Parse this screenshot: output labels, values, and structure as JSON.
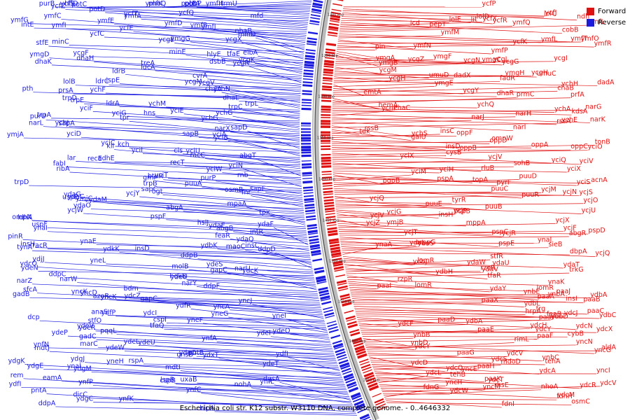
{
  "legend": {
    "forward_label": "Forward",
    "reverse_label": "Reverse",
    "forward_color": "#e01010",
    "reverse_color": "#1a1ae0"
  },
  "caption": "Escherichia coli str. K12 substr. W3110 DNA, complete genome. - 0..4646332",
  "ruler_ticks": [
    "1200 kbp",
    "1250 kbp",
    "1300 kbp",
    "1350 kbp",
    "1400 kbp",
    "1450 kbp",
    "1500 kbp",
    "1550 kbp",
    "1600 kbp",
    "1650 kbp"
  ],
  "reverse_genes": [
    "ymfK",
    "ymfH",
    "trmU",
    "hflD",
    "purB",
    "phoP",
    "phoQ",
    "potA",
    "potB",
    "potC",
    "ycfZ",
    "ycfT",
    "mfd",
    "ycfS",
    "ycfQ",
    "potD",
    "ymfA",
    "ymfG",
    "intE",
    "ymfD",
    "ymfC",
    "ymfJ",
    "ymfE",
    "ymfB",
    "ymfI",
    "ycfC",
    "ycfE",
    "nhaB",
    "minC",
    "minD",
    "ymgG",
    "ycgE",
    "ycgX",
    "stfE",
    "ycgF",
    "elbA",
    "tfaE",
    "dsbB",
    "hlyE",
    "minE",
    "ycgK",
    "ymgD",
    "dhaK",
    "dhaH",
    "treA",
    "ycgR",
    "ldcA",
    "cvrA",
    "ycgM",
    "ldrC",
    "ldrB",
    "lolB",
    "ispE",
    "prsA",
    "pth",
    "ychF",
    "ycgV",
    "dhaL",
    "ychN",
    "chaA",
    "ldrA",
    "ychM",
    "trpL",
    "trpE",
    "trpD",
    "trpC",
    "trpA",
    "yciG",
    "yciF",
    "yciE",
    "ychG",
    "ychG",
    "hns",
    "ychJ",
    "purU",
    "tpr",
    "narL",
    "narX",
    "ymjA",
    "sapA",
    "sapB",
    "sapD",
    "yciD",
    "yciC",
    "yciB",
    "yciA",
    "yciI",
    "kch",
    "cls",
    "yciU",
    "adhE",
    "kil",
    "racC",
    "recE",
    "recT",
    "lar",
    "abgT",
    "fabI",
    "yciW",
    "rnb",
    "yciT",
    "ribA",
    "yciN",
    "btuR",
    "trpD",
    "trpB",
    "purP",
    "sapF",
    "gmr",
    "osmB",
    "puuA",
    "sapC",
    "ogt",
    "fnr",
    "uspE",
    "ycjY",
    "ydaG",
    "ydaC",
    "ydaO",
    "ydaM",
    "ymjC",
    "abgA",
    "mpaA",
    "tpx",
    "ycjW",
    "pspF",
    "ldhA",
    "hslJ",
    "ompN",
    "uspF",
    "ydaE",
    "intR",
    "abgB",
    "ynaI",
    "ydaF",
    "ydaQ",
    "ynaE",
    "feaR",
    "pinR",
    "insH",
    "racR",
    "ydbK",
    "tynA",
    "insD",
    "maoC",
    "insC",
    "ddpB",
    "ddpD",
    "ydkK",
    "yneL",
    "ydeS",
    "ydeN",
    "ydjJ",
    "ydcK",
    "molB",
    "hokB",
    "ydcO",
    "gapC",
    "ydeU",
    "narU",
    "ddpC",
    "ddpF",
    "narZ",
    "bdm",
    "narY",
    "narW",
    "yncD",
    "gadB",
    "sfcA",
    "yncK",
    "gapC",
    "yncK",
    "azoR",
    "yncA",
    "ydcZ",
    "yncJ",
    "ydcI",
    "anaS",
    "ydfR",
    "ydfP",
    "cspI",
    "stfO",
    "ynel",
    "yneG",
    "tfaQ",
    "dcp",
    "yneF",
    "ydeO",
    "ydeR",
    "ydeI",
    "pqqL",
    "ydeV",
    "ydeP",
    "gadC",
    "ynfA",
    "ynfN",
    "ydeL",
    "marC",
    "ydeW",
    "ydeU",
    "ydeO",
    "pntB",
    "mdtJ",
    "rspA",
    "gnsB",
    "ydfI",
    "yneH",
    "ydeT",
    "ydxT",
    "ydgE",
    "ydgJ",
    "ydgK",
    "ydgM",
    "ynaI",
    "mdtI",
    "lspB",
    "cspB",
    "ydfI",
    "uxaB",
    "ynfL",
    "rem",
    "eamA",
    "dgsA",
    "ynfP",
    "nohA",
    "ydgC",
    "ynfK",
    "dicC",
    "ynfC",
    "pntA",
    "ddpA",
    "hipA"
  ],
  "forward_genes": [
    "ycfP",
    "ndh",
    "ycfJ",
    "ycfR",
    "lolC",
    "lolD",
    "lolE",
    "ycfX",
    "cobB",
    "pepT",
    "lit",
    "icd",
    "ymfQ",
    "ymfL",
    "ymfT",
    "ymfL",
    "ymfM",
    "ymfN",
    "ymfR",
    "ymfO",
    "ymfP",
    "ycfK",
    "pin",
    "ycgZ",
    "ymgA",
    "ymgB",
    "ymgC",
    "ycgG",
    "ymgF",
    "ycgI",
    "ycgL",
    "ycgM",
    "ycgN",
    "umuD",
    "umuC",
    "ycgH",
    "ycgH",
    "ymgH",
    "dadA",
    "dadX",
    "emtA",
    "fadR",
    "ycgY",
    "ymgE",
    "ychH",
    "dhaR",
    "chaB",
    "hemA",
    "chaC",
    "prfA",
    "prmC",
    "ychQ",
    "ychA",
    "kdsA",
    "narG",
    "narK",
    "ychP",
    "rssA",
    "narH",
    "narI",
    "narJ",
    "ychS",
    "ychE",
    "galU",
    "tdk",
    "rssB",
    "oppF",
    "insC",
    "oppD",
    "insD",
    "ompW",
    "oppA",
    "oppB",
    "tonB",
    "oppC",
    "yciV",
    "yciO",
    "cysB",
    "yciX",
    "yciQ",
    "rluB",
    "ycjV",
    "yciX",
    "sohB",
    "yciH",
    "topA",
    "pgpB",
    "yciS",
    "acnA",
    "yciM",
    "pyrF",
    "puuD",
    "pspA",
    "puuR",
    "ycjS",
    "ycjM",
    "puuC",
    "ycjQ",
    "ycjN",
    "puuB",
    "tyrR",
    "ycjU",
    "ycjO",
    "puuE",
    "insH",
    "ycjG",
    "ycjV",
    "ycjP",
    "pspB",
    "ycjZ",
    "mppA",
    "ymjB",
    "pspC",
    "ycjX",
    "ycjR",
    "pspD",
    "ycjF",
    "ycjT",
    "pspE",
    "abgR",
    "ydaL",
    "ynaJ",
    "ompG",
    "ycjQ",
    "sieB",
    "yaaS",
    "dbpA",
    "ynaA",
    "lomR",
    "ydbJ",
    "ydaT",
    "ydaU",
    "ydbH",
    "stfR",
    "tfaR",
    "ydaV",
    "ydaW",
    "rzoR",
    "rzpR",
    "trkG",
    "ynaK",
    "ydaY",
    "lomR",
    "lomR",
    "paaI",
    "paaA",
    "ynbE",
    "ydbA",
    "paaJ",
    "paaB",
    "ydbL",
    "ynbA",
    "insI",
    "paaX",
    "paaC",
    "feaB",
    "trg",
    "hrpA",
    "ydbC",
    "paaY",
    "paaD",
    "ydcN",
    "ydcJ",
    "ydcF",
    "ydbD",
    "ydbA",
    "paaE",
    "ydcX",
    "ydcY",
    "ydcH",
    "cybB",
    "ynbD",
    "ynbB",
    "paaF",
    "yncG",
    "ydcY",
    "yncN",
    "rimL",
    "aldA",
    "ynbC",
    "paaG",
    "ydcD",
    "ydcV",
    "ydcS",
    "tehA",
    "ydcA",
    "paaH",
    "ydcQ",
    "mdoD",
    "paaK",
    "yncI",
    "yncE",
    "ydcR",
    "tehB",
    "ydcT",
    "ydcL",
    "yncM",
    "yncH",
    "rhsE",
    "ydcM",
    "ydcV",
    "ydcW",
    "nhoA",
    "fdnG",
    "fdnH",
    "fdnI",
    "osmC"
  ]
}
